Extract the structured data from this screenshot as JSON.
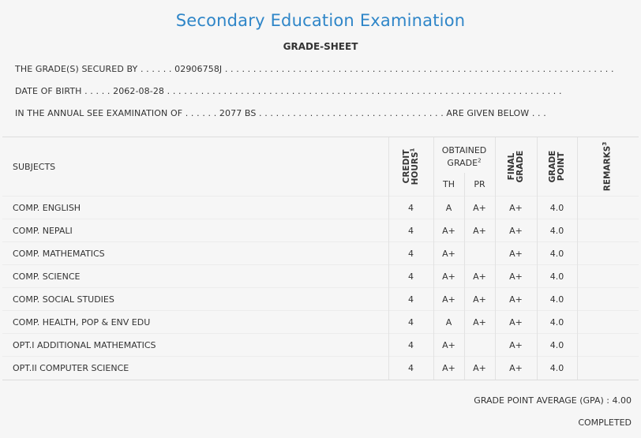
{
  "header": {
    "title": "Secondary Education Examination",
    "subtitle": "GRADE-SHEET"
  },
  "info": {
    "secured_by_label": "THE GRADE(S) SECURED BY . . . . . . ",
    "symbol_no": "02906758J",
    "secured_by_dots": " . . . . . . . . . . . . . . . . . . . . . . . . . . . . . . . . . . . . . . . . . . . . . . . . . . . . . . . . . . . . . . . . . . . . .",
    "dob_label": "DATE OF BIRTH . . . . . ",
    "dob": "2062-08-28",
    "dob_dots": " . . . . . . . . . . . . . . . . . . . . . . . . . . . . . . . . . . . . . . . . . . . . . . . . . . . . . . . . . . . . . . . . . . . . . .",
    "exam_label": "IN THE ANNUAL SEE EXAMINATION OF . . . . . . ",
    "exam_year": "2077 BS",
    "exam_dots": " . . . . . . . . . . . . . . . . . . . . . . . . . . . . . . . . . ",
    "exam_suffix": "ARE GIVEN BELOW . . ."
  },
  "table": {
    "headers": {
      "subjects": "SUBJECTS",
      "credit_hours_line1": "CREDIT",
      "credit_hours_line2": "HOURS",
      "credit_sup": "1",
      "obtained_line1": "OBTAINED",
      "obtained_line2": "GRADE",
      "obtained_sup": "2",
      "th": "TH",
      "pr": "PR",
      "final_line1": "FINAL",
      "final_line2": "GRADE",
      "gp_line1": "GRADE",
      "gp_line2": "POINT",
      "remarks": "REMARKS",
      "remarks_sup": "3"
    },
    "rows": [
      {
        "subject": "COMP. ENGLISH",
        "credit": "4",
        "th": "A",
        "pr": "A+",
        "final": "A+",
        "gp": "4.0",
        "remarks": ""
      },
      {
        "subject": "COMP. NEPALI",
        "credit": "4",
        "th": "A+",
        "pr": "A+",
        "final": "A+",
        "gp": "4.0",
        "remarks": ""
      },
      {
        "subject": "COMP. MATHEMATICS",
        "credit": "4",
        "th": "A+",
        "pr": "",
        "final": "A+",
        "gp": "4.0",
        "remarks": ""
      },
      {
        "subject": "COMP. SCIENCE",
        "credit": "4",
        "th": "A+",
        "pr": "A+",
        "final": "A+",
        "gp": "4.0",
        "remarks": ""
      },
      {
        "subject": "COMP. SOCIAL STUDIES",
        "credit": "4",
        "th": "A+",
        "pr": "A+",
        "final": "A+",
        "gp": "4.0",
        "remarks": ""
      },
      {
        "subject": "COMP. HEALTH, POP & ENV EDU",
        "credit": "4",
        "th": "A",
        "pr": "A+",
        "final": "A+",
        "gp": "4.0",
        "remarks": ""
      },
      {
        "subject": "OPT.I ADDITIONAL MATHEMATICS",
        "credit": "4",
        "th": "A+",
        "pr": "",
        "final": "A+",
        "gp": "4.0",
        "remarks": ""
      },
      {
        "subject": "OPT.II COMPUTER SCIENCE",
        "credit": "4",
        "th": "A+",
        "pr": "A+",
        "final": "A+",
        "gp": "4.0",
        "remarks": ""
      }
    ]
  },
  "summary": {
    "gpa_label": "GRADE POINT AVERAGE (GPA) : ",
    "gpa_value": "4.00",
    "status": "COMPLETED"
  },
  "colors": {
    "title": "#2f86c8",
    "background": "#f6f6f6",
    "text": "#333333"
  }
}
